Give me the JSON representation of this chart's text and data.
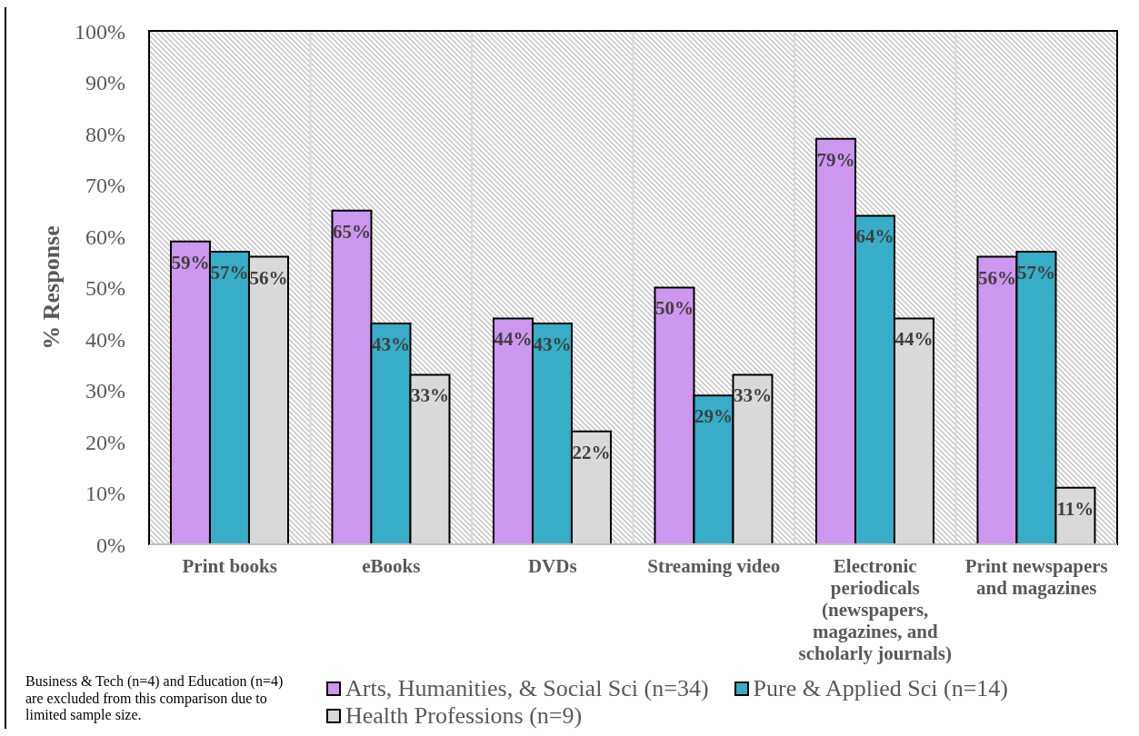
{
  "chart_data": {
    "type": "bar",
    "ylabel": "% Response",
    "categories": [
      "Print books",
      "eBooks",
      "DVDs",
      "Streaming video",
      "Electronic periodicals (newspapers, magazines, and scholarly journals)",
      "Print newspapers and magazines"
    ],
    "series": [
      {
        "name": "Arts, Humanities, & Social Sci (n=34)",
        "color": "#cd97ef",
        "values": [
          59,
          65,
          44,
          50,
          79,
          56
        ],
        "value_labels": [
          "59%",
          "65%",
          "44%",
          "50%",
          "79%",
          "56%"
        ]
      },
      {
        "name": "Pure & Applied Sci (n=14)",
        "color": "#37adc7",
        "values": [
          57,
          43,
          43,
          29,
          64,
          57
        ],
        "value_labels": [
          "57%",
          "43%",
          "43%",
          "29%",
          "64%",
          "57%"
        ]
      },
      {
        "name": "Health Professions (n=9)",
        "color": "#d9d9d9",
        "values": [
          56,
          33,
          22,
          33,
          44,
          11
        ],
        "value_labels": [
          "56%",
          "33%",
          "22%",
          "33%",
          "44%",
          "11%"
        ]
      }
    ],
    "ylim": [
      0,
      100
    ],
    "yticks": [
      {
        "value": 0,
        "label": "0%"
      },
      {
        "value": 10,
        "label": "10%"
      },
      {
        "value": 20,
        "label": "20%"
      },
      {
        "value": 30,
        "label": "30%"
      },
      {
        "value": 40,
        "label": "40%"
      },
      {
        "value": 50,
        "label": "50%"
      },
      {
        "value": 60,
        "label": "60%"
      },
      {
        "value": 70,
        "label": "70%"
      },
      {
        "value": 80,
        "label": "80%"
      },
      {
        "value": 90,
        "label": "90%"
      },
      {
        "value": 100,
        "label": "100%"
      }
    ],
    "grid": true,
    "legend": "bottom",
    "annotations": [
      "Business & Tech (n=4) and Education (n=4) are excluded from this comparison due to limited sample size."
    ]
  }
}
